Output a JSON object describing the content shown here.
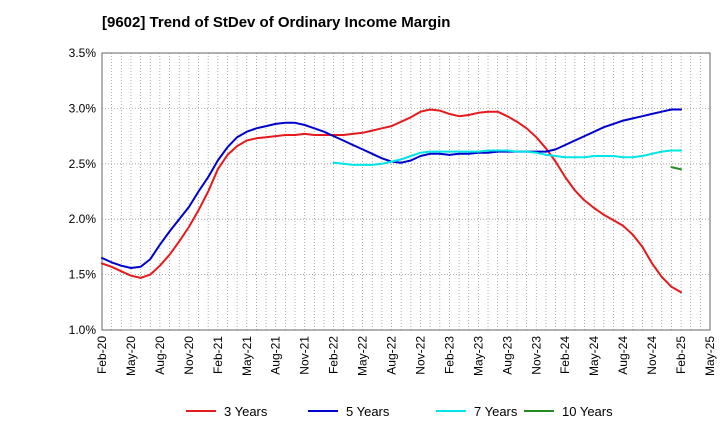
{
  "chart_data": {
    "type": "line",
    "title": "[9602]  Trend of StDev of Ordinary Income Margin",
    "xlabel": "",
    "ylabel": "",
    "ylim": [
      1.0,
      3.5
    ],
    "y_ticks": [
      "1.0%",
      "1.5%",
      "2.0%",
      "2.5%",
      "3.0%",
      "3.5%"
    ],
    "x_ticks": [
      "Feb-20",
      "May-20",
      "Aug-20",
      "Nov-20",
      "Feb-21",
      "May-21",
      "Aug-21",
      "Nov-21",
      "Feb-22",
      "May-22",
      "Aug-22",
      "Nov-22",
      "Feb-23",
      "May-23",
      "Aug-23",
      "Nov-23",
      "Feb-24",
      "May-24",
      "Aug-24",
      "Nov-24",
      "Feb-25",
      "May-25"
    ],
    "grid": true,
    "legend_position": "bottom",
    "series": [
      {
        "name": "3 Years",
        "color": "#e41a1c",
        "x": [
          "2020-02",
          "2020-03",
          "2020-04",
          "2020-05",
          "2020-06",
          "2020-07",
          "2020-08",
          "2020-09",
          "2020-10",
          "2020-11",
          "2020-12",
          "2021-01",
          "2021-02",
          "2021-03",
          "2021-04",
          "2021-05",
          "2021-06",
          "2021-07",
          "2021-08",
          "2021-09",
          "2021-10",
          "2021-11",
          "2021-12",
          "2022-01",
          "2022-02",
          "2022-03",
          "2022-04",
          "2022-05",
          "2022-06",
          "2022-07",
          "2022-08",
          "2022-09",
          "2022-10",
          "2022-11",
          "2022-12",
          "2023-01",
          "2023-02",
          "2023-03",
          "2023-04",
          "2023-05",
          "2023-06",
          "2023-07",
          "2023-08",
          "2023-09",
          "2023-10",
          "2023-11",
          "2023-12",
          "2024-01",
          "2024-02",
          "2024-03",
          "2024-04",
          "2024-05",
          "2024-06",
          "2024-07",
          "2024-08",
          "2024-09",
          "2024-10",
          "2024-11",
          "2024-12",
          "2025-01",
          "2025-02"
        ],
        "values": [
          1.6,
          1.57,
          1.53,
          1.49,
          1.47,
          1.5,
          1.58,
          1.68,
          1.8,
          1.93,
          2.08,
          2.25,
          2.45,
          2.58,
          2.66,
          2.71,
          2.73,
          2.74,
          2.75,
          2.76,
          2.76,
          2.77,
          2.76,
          2.76,
          2.76,
          2.76,
          2.77,
          2.78,
          2.8,
          2.82,
          2.84,
          2.88,
          2.92,
          2.97,
          2.99,
          2.98,
          2.95,
          2.93,
          2.94,
          2.96,
          2.97,
          2.97,
          2.93,
          2.88,
          2.82,
          2.74,
          2.64,
          2.52,
          2.38,
          2.26,
          2.17,
          2.1,
          2.04,
          1.99,
          1.94,
          1.86,
          1.75,
          1.6,
          1.48,
          1.39,
          1.34
        ]
      },
      {
        "name": "5 Years",
        "color": "#0000cc",
        "x": [
          "2020-02",
          "2020-03",
          "2020-04",
          "2020-05",
          "2020-06",
          "2020-07",
          "2020-08",
          "2020-09",
          "2020-10",
          "2020-11",
          "2020-12",
          "2021-01",
          "2021-02",
          "2021-03",
          "2021-04",
          "2021-05",
          "2021-06",
          "2021-07",
          "2021-08",
          "2021-09",
          "2021-10",
          "2021-11",
          "2021-12",
          "2022-01",
          "2022-02",
          "2022-03",
          "2022-04",
          "2022-05",
          "2022-06",
          "2022-07",
          "2022-08",
          "2022-09",
          "2022-10",
          "2022-11",
          "2022-12",
          "2023-01",
          "2023-02",
          "2023-03",
          "2023-04",
          "2023-05",
          "2023-06",
          "2023-07",
          "2023-08",
          "2023-09",
          "2023-10",
          "2023-11",
          "2023-12",
          "2024-01",
          "2024-02",
          "2024-03",
          "2024-04",
          "2024-05",
          "2024-06",
          "2024-07",
          "2024-08",
          "2024-09",
          "2024-10",
          "2024-11",
          "2024-12",
          "2025-01",
          "2025-02"
        ],
        "values": [
          1.65,
          1.61,
          1.58,
          1.56,
          1.57,
          1.64,
          1.77,
          1.89,
          2.0,
          2.11,
          2.25,
          2.38,
          2.53,
          2.65,
          2.74,
          2.79,
          2.82,
          2.84,
          2.86,
          2.87,
          2.87,
          2.85,
          2.82,
          2.79,
          2.75,
          2.71,
          2.67,
          2.63,
          2.59,
          2.55,
          2.52,
          2.51,
          2.53,
          2.57,
          2.59,
          2.59,
          2.58,
          2.59,
          2.59,
          2.6,
          2.6,
          2.61,
          2.61,
          2.61,
          2.61,
          2.61,
          2.61,
          2.63,
          2.67,
          2.71,
          2.75,
          2.79,
          2.83,
          2.86,
          2.89,
          2.91,
          2.93,
          2.95,
          2.97,
          2.99,
          2.99
        ]
      },
      {
        "name": "7 Years",
        "color": "#00e5e5",
        "x": [
          "2022-02",
          "2022-03",
          "2022-04",
          "2022-05",
          "2022-06",
          "2022-07",
          "2022-08",
          "2022-09",
          "2022-10",
          "2022-11",
          "2022-12",
          "2023-01",
          "2023-02",
          "2023-03",
          "2023-04",
          "2023-05",
          "2023-06",
          "2023-07",
          "2023-08",
          "2023-09",
          "2023-10",
          "2023-11",
          "2023-12",
          "2024-01",
          "2024-02",
          "2024-03",
          "2024-04",
          "2024-05",
          "2024-06",
          "2024-07",
          "2024-08",
          "2024-09",
          "2024-10",
          "2024-11",
          "2024-12",
          "2025-01",
          "2025-02"
        ],
        "values": [
          2.51,
          2.5,
          2.49,
          2.49,
          2.49,
          2.5,
          2.52,
          2.54,
          2.57,
          2.6,
          2.61,
          2.61,
          2.61,
          2.61,
          2.61,
          2.61,
          2.62,
          2.62,
          2.62,
          2.61,
          2.61,
          2.6,
          2.58,
          2.57,
          2.56,
          2.56,
          2.56,
          2.57,
          2.57,
          2.57,
          2.56,
          2.56,
          2.57,
          2.59,
          2.61,
          2.62,
          2.62
        ]
      },
      {
        "name": "10 Years",
        "color": "#228b22",
        "x": [
          "2025-01",
          "2025-02"
        ],
        "values": [
          2.47,
          2.45
        ]
      }
    ]
  }
}
